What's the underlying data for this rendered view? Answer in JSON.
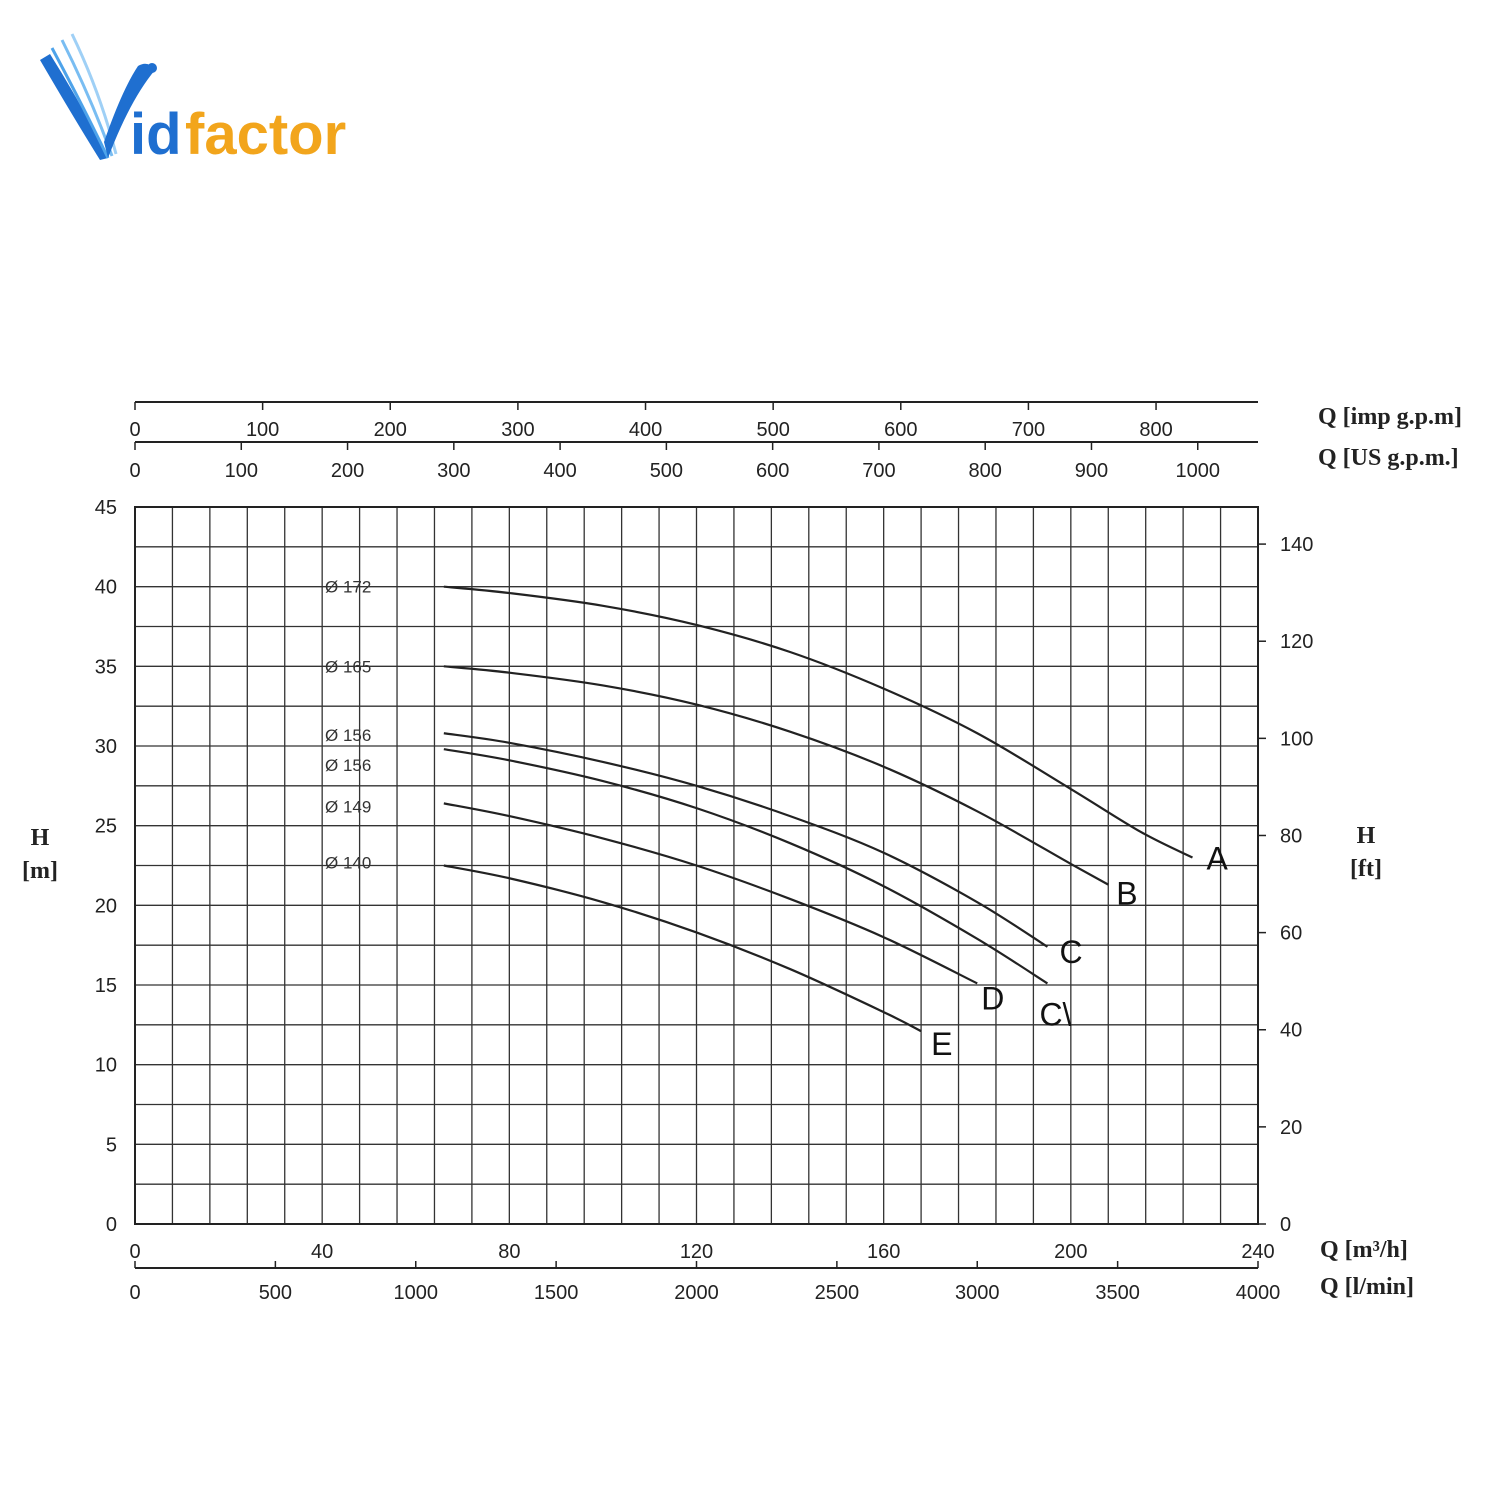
{
  "brand": {
    "name_part1": "id",
    "name_part2": "factor",
    "color_blue": "#1f6fd0",
    "color_orange": "#f2a51c"
  },
  "chart_data": {
    "type": "line",
    "xlabel": "Q [m³/h]",
    "xlim": [
      0,
      240
    ],
    "x_ticks": [
      "0",
      "40",
      "80",
      "120",
      "160",
      "200",
      "240"
    ],
    "ylabel_left": "H\n[m]",
    "ylim": [
      0,
      45
    ],
    "y_ticks_left": [
      "0",
      "5",
      "10",
      "15",
      "20",
      "25",
      "30",
      "35",
      "40",
      "45"
    ],
    "ylabel_right": "H\n[ft]",
    "y_ticks_right": [
      "0",
      "20",
      "40",
      "60",
      "80",
      "100",
      "120",
      "140"
    ],
    "secondary_x_bottom": {
      "label": "Q [l/min]",
      "ticks": [
        "0",
        "500",
        "1000",
        "1500",
        "2000",
        "2500",
        "3000",
        "3500",
        "4000"
      ]
    },
    "top_axis_imp": {
      "label": "Q [imp g.p.m]",
      "ticks": [
        "0",
        "100",
        "200",
        "300",
        "400",
        "500",
        "600",
        "700",
        "800"
      ]
    },
    "top_axis_us": {
      "label": "Q [US g.p.m.]",
      "ticks": [
        "0",
        "100",
        "200",
        "300",
        "400",
        "500",
        "600",
        "700",
        "800",
        "900",
        "1000"
      ]
    },
    "grid": true,
    "series": [
      {
        "name": "A",
        "diameter": "Ø 172",
        "color": "#222222",
        "label_color": "#111111",
        "x": [
          66,
          80,
          100,
          120,
          140,
          160,
          180,
          200,
          215,
          226
        ],
        "y": [
          40,
          39.6,
          38.8,
          37.6,
          35.9,
          33.6,
          30.8,
          27.3,
          24.6,
          23.0
        ]
      },
      {
        "name": "B",
        "diameter": "Ø 165",
        "color": "#222222",
        "label_color": "#e0161b",
        "x": [
          66,
          80,
          100,
          120,
          140,
          160,
          180,
          200,
          208
        ],
        "y": [
          35.0,
          34.6,
          33.8,
          32.6,
          30.9,
          28.7,
          25.9,
          22.6,
          21.3
        ]
      },
      {
        "name": "C",
        "diameter": "Ø 156",
        "color": "#222222",
        "label_color": "#111111",
        "x": [
          66,
          80,
          100,
          120,
          140,
          160,
          180,
          195
        ],
        "y": [
          30.8,
          30.2,
          29.0,
          27.5,
          25.6,
          23.3,
          20.2,
          17.4
        ]
      },
      {
        "name": "C1",
        "diameter": "Ø 156",
        "color": "#222222",
        "label_color": "#111111",
        "x": [
          66,
          80,
          100,
          120,
          140,
          160,
          180,
          195
        ],
        "y": [
          29.8,
          29.1,
          27.8,
          26.1,
          23.9,
          21.2,
          17.9,
          15.1
        ]
      },
      {
        "name": "D",
        "diameter": "Ø 149",
        "color": "#222222",
        "label_color": "#111111",
        "x": [
          66,
          80,
          100,
          120,
          140,
          160,
          180
        ],
        "y": [
          26.4,
          25.6,
          24.2,
          22.5,
          20.4,
          18.0,
          15.1
        ]
      },
      {
        "name": "E",
        "diameter": "Ø 140",
        "color": "#222222",
        "label_color": "#111111",
        "x": [
          66,
          80,
          100,
          120,
          140,
          160,
          168
        ],
        "y": [
          22.5,
          21.7,
          20.2,
          18.3,
          16.0,
          13.3,
          12.1
        ]
      }
    ],
    "curve_labels": [
      "A",
      "B",
      "C",
      "C\\",
      "D",
      "E"
    ],
    "diameter_labels": [
      "Ø 172",
      "Ø 165",
      "Ø 156",
      "Ø 156",
      "Ø 149",
      "Ø 140"
    ]
  }
}
